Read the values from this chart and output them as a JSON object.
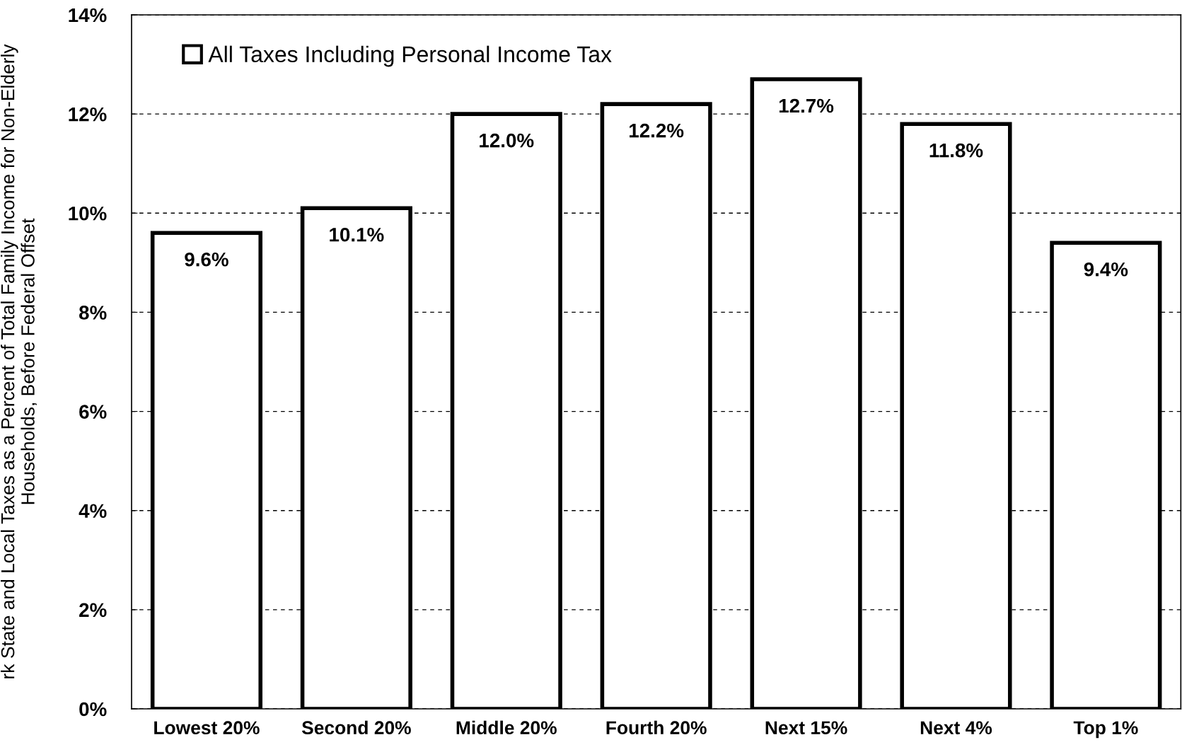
{
  "chart_data": {
    "type": "bar",
    "ylabel": "rk State and Local Taxes as a Percent of Total Family Income for Non-Elderly\nHouseholds, Before Federal Offset",
    "categories": [
      "Lowest 20%",
      "Second 20%",
      "Middle 20%",
      "Fourth 20%",
      "Next 15%",
      "Next 4%",
      "Top 1%"
    ],
    "series": [
      {
        "name": "All Taxes Including Personal Income Tax",
        "color": "#ffffff",
        "values": [
          9.6,
          10.1,
          12.0,
          12.2,
          12.7,
          11.8,
          9.4
        ],
        "value_labels": [
          "9.6%",
          "10.1%",
          "12.0%",
          "12.2%",
          "12.7%",
          "11.8%",
          "9.4%"
        ]
      }
    ],
    "ylim": [
      0,
      14
    ],
    "yticks": [
      {
        "value": 0,
        "label": "0%"
      },
      {
        "value": 2,
        "label": "2%"
      },
      {
        "value": 4,
        "label": "4%"
      },
      {
        "value": 6,
        "label": "6%"
      },
      {
        "value": 8,
        "label": "8%"
      },
      {
        "value": 10,
        "label": "10%"
      },
      {
        "value": 12,
        "label": "12%"
      },
      {
        "value": 14,
        "label": "14%"
      }
    ],
    "grid": "y",
    "legend": "top left"
  }
}
